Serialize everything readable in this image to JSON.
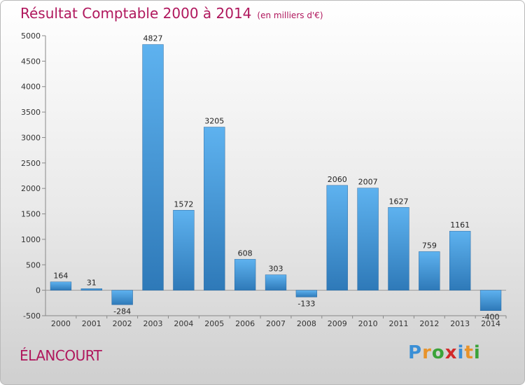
{
  "header": {
    "title": "Résultat Comptable 2000 à 2014",
    "subtitle": "(en milliers d'€)"
  },
  "commune": "ÉLANCOURT",
  "logo": {
    "letters": [
      "P",
      "r",
      "o",
      "x",
      "i",
      "t",
      "i"
    ],
    "colors": [
      "#3a8fd6",
      "#e8932a",
      "#3ba33a",
      "#d12a2a",
      "#3a8fd6",
      "#e8932a",
      "#3ba33a"
    ]
  },
  "chart_data": {
    "type": "bar",
    "title": "Résultat Comptable 2000 à 2014",
    "categories": [
      "2000",
      "2001",
      "2002",
      "2003",
      "2004",
      "2005",
      "2006",
      "2007",
      "2008",
      "2009",
      "2010",
      "2011",
      "2012",
      "2013",
      "2014"
    ],
    "values": [
      164,
      31,
      -284,
      4827,
      1572,
      3205,
      608,
      303,
      -133,
      2060,
      2007,
      1627,
      759,
      1161,
      -400
    ],
    "data_labels": [
      "164",
      "31",
      "-284",
      "4827",
      "1572",
      "3205",
      "608",
      "303",
      "-133",
      "2060",
      "2007",
      "1627",
      "759",
      "1161",
      "-400"
    ],
    "ylim": [
      -500,
      5000
    ],
    "yticks": [
      -500,
      0,
      500,
      1000,
      1500,
      2000,
      2500,
      3000,
      3500,
      4000,
      4500,
      5000
    ],
    "grid": false,
    "bar_color_top": "#5eb2ef",
    "bar_color_bottom": "#2e79b8"
  }
}
